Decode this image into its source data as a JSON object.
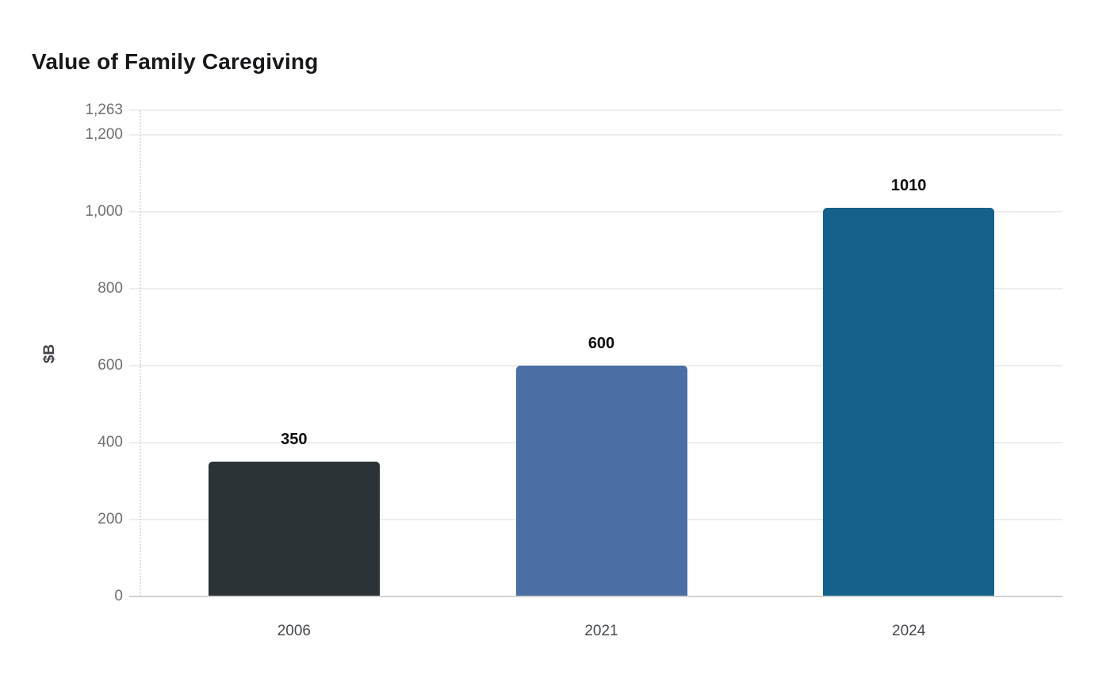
{
  "title": "Value of Family Caregiving",
  "chart_data": {
    "type": "bar",
    "title": "Value of Family Caregiving",
    "xlabel": "",
    "ylabel": "$B",
    "categories": [
      "2006",
      "2021",
      "2024"
    ],
    "values": [
      350,
      600,
      1010
    ],
    "value_labels": [
      "350",
      "600",
      "1010"
    ],
    "bar_colors": [
      "#2c3337",
      "#4b6ea4",
      "#16618c"
    ],
    "ylim": [
      0,
      1263
    ],
    "yticks": [
      {
        "value": 0,
        "label": "0"
      },
      {
        "value": 200,
        "label": "200"
      },
      {
        "value": 400,
        "label": "400"
      },
      {
        "value": 600,
        "label": "600"
      },
      {
        "value": 800,
        "label": "800"
      },
      {
        "value": 1000,
        "label": "1,000"
      },
      {
        "value": 1200,
        "label": "1,200"
      },
      {
        "value": 1263,
        "label": "1,263"
      }
    ],
    "grid": "horizontal",
    "legend": "none",
    "colors": {
      "gridline": "#ededed",
      "axis_line": "#d2d2d2",
      "y_axis_dotted": "#dcdcdc",
      "ytick_text": "#6e6e6e",
      "xtick_text": "#45494d",
      "title_text": "#16181a",
      "value_label_text": "#0d0d0d",
      "background": "#ffffff"
    }
  }
}
